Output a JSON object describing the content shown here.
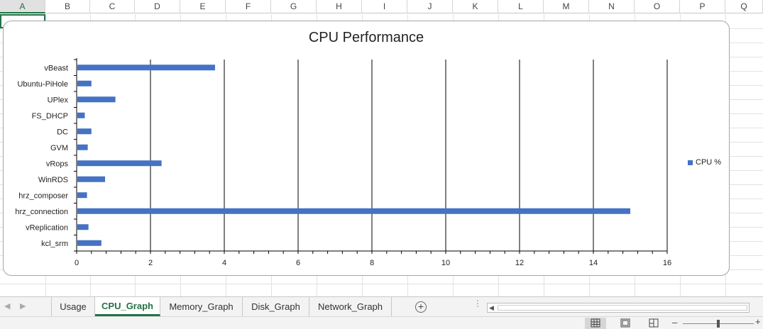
{
  "columns": [
    "A",
    "B",
    "C",
    "D",
    "E",
    "F",
    "G",
    "H",
    "I",
    "J",
    "K",
    "L",
    "M",
    "N",
    "O",
    "P",
    "Q"
  ],
  "chart_data": {
    "type": "bar",
    "orientation": "horizontal",
    "title": "CPU Performance",
    "categories": [
      "vBeast",
      "Ubuntu-PiHole",
      "UPlex",
      "FS_DHCP",
      "DC",
      "GVM",
      "vRops",
      "WinRDS",
      "hrz_composer",
      "hrz_connection",
      "vReplication",
      "kcl_srm"
    ],
    "series": [
      {
        "name": "CPU %",
        "values": [
          3.75,
          0.4,
          1.05,
          0.22,
          0.4,
          0.3,
          2.3,
          0.77,
          0.28,
          15.0,
          0.32,
          0.67
        ]
      }
    ],
    "xlim": [
      0,
      16
    ],
    "x_ticks": [
      "0",
      "2",
      "4",
      "6",
      "8",
      "10",
      "12",
      "14",
      "16"
    ],
    "grid": "vertical major gridlines",
    "legend_position": "right",
    "bar_color": "#4472c4"
  },
  "sheet_tabs": [
    {
      "label": "Usage",
      "active": false
    },
    {
      "label": "CPU_Graph",
      "active": true
    },
    {
      "label": "Memory_Graph",
      "active": false
    },
    {
      "label": "Disk_Graph",
      "active": false
    },
    {
      "label": "Network_Graph",
      "active": false
    }
  ],
  "icons": {
    "nav_prev": "triangle-left-icon",
    "nav_next": "triangle-right-icon",
    "add_sheet": "plus-circle-icon",
    "normal_view": "grid-icon",
    "page_layout": "page-layout-icon",
    "page_break": "page-break-icon"
  },
  "accent_color": "#217346"
}
